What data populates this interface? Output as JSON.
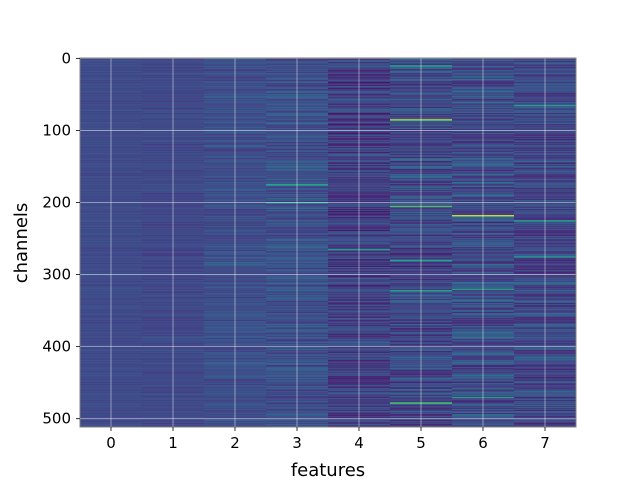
{
  "chart_data": {
    "type": "heatmap",
    "title": "",
    "xlabel": "features",
    "ylabel": "channels",
    "x_ticks": [
      "0",
      "1",
      "2",
      "3",
      "4",
      "5",
      "6",
      "7"
    ],
    "y_ticks": [
      "0",
      "100",
      "200",
      "300",
      "400",
      "500"
    ],
    "y_tick_values": [
      0,
      100,
      200,
      300,
      400,
      500
    ],
    "n_features": 8,
    "n_channels": 512,
    "xlim": [
      -0.5,
      7.5
    ],
    "ylim": [
      511.5,
      -0.5
    ],
    "grid": true,
    "colormap": "viridis",
    "column_base_value": [
      0.28,
      0.27,
      0.3,
      0.31,
      0.23,
      0.27,
      0.29,
      0.27
    ],
    "column_spread": [
      0.03,
      0.05,
      0.09,
      0.12,
      0.16,
      0.18,
      0.18,
      0.16
    ],
    "highlights": [
      {
        "feature": 3,
        "channel": 175,
        "value": 0.75
      },
      {
        "feature": 3,
        "channel": 200,
        "value": 0.7
      },
      {
        "feature": 4,
        "channel": 265,
        "value": 0.7
      },
      {
        "feature": 5,
        "channel": 10,
        "value": 0.75
      },
      {
        "feature": 5,
        "channel": 85,
        "value": 0.95
      },
      {
        "feature": 5,
        "channel": 205,
        "value": 0.85
      },
      {
        "feature": 5,
        "channel": 280,
        "value": 0.75
      },
      {
        "feature": 5,
        "channel": 322,
        "value": 0.75
      },
      {
        "feature": 5,
        "channel": 478,
        "value": 0.85
      },
      {
        "feature": 6,
        "channel": 218,
        "value": 0.98
      },
      {
        "feature": 6,
        "channel": 320,
        "value": 0.75
      },
      {
        "feature": 6,
        "channel": 470,
        "value": 0.75
      },
      {
        "feature": 7,
        "channel": 65,
        "value": 0.7
      },
      {
        "feature": 7,
        "channel": 225,
        "value": 0.7
      },
      {
        "feature": 7,
        "channel": 275,
        "value": 0.65
      }
    ]
  }
}
